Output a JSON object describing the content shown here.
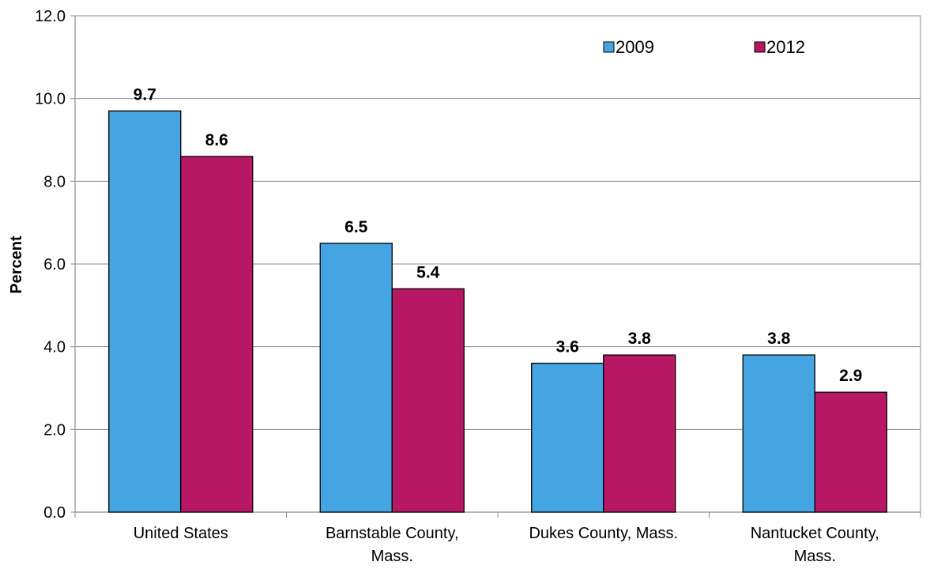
{
  "chart_data": {
    "type": "bar",
    "title": "",
    "xlabel": "",
    "ylabel": "Percent",
    "ylim": [
      0,
      12
    ],
    "yticks": [
      "0.0",
      "2.0",
      "4.0",
      "6.0",
      "8.0",
      "10.0",
      "12.0"
    ],
    "grid": true,
    "legend_position": "top-right",
    "categories": [
      [
        "United States"
      ],
      [
        "Barnstable County,",
        "Mass."
      ],
      [
        "Dukes County, Mass."
      ],
      [
        "Nantucket County,",
        "Mass."
      ]
    ],
    "series": [
      {
        "name": "2009",
        "values": [
          9.7,
          6.5,
          3.6,
          3.8
        ],
        "color": "#45A5E2"
      },
      {
        "name": "2012",
        "values": [
          8.6,
          5.4,
          3.8,
          2.9
        ],
        "color": "#B71764"
      }
    ],
    "value_labels": [
      [
        "9.7",
        "6.5",
        "3.6",
        "3.8"
      ],
      [
        "8.6",
        "5.4",
        "3.8",
        "2.9"
      ]
    ]
  }
}
